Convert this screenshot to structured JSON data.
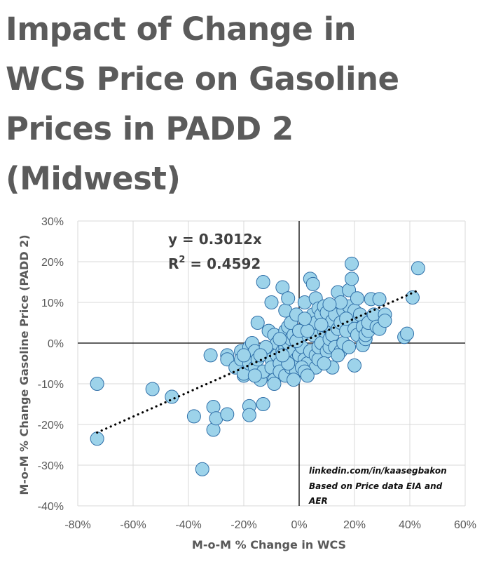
{
  "title_lines": [
    "Impact of Change in",
    "WCS Price on Gasoline",
    "Prices in PADD 2",
    "(Midwest)"
  ],
  "chart_data": {
    "type": "scatter",
    "xlabel": "M-o-M % Change in WCS",
    "ylabel": "M-o-M % Change Gasoline Price (PADD 2)",
    "xlim": [
      -80,
      60
    ],
    "ylim": [
      -40,
      30
    ],
    "x_ticks": [
      "-80%",
      "-60%",
      "-40%",
      "-20%",
      "0%",
      "20%",
      "40%",
      "60%"
    ],
    "y_ticks": [
      "30%",
      "20%",
      "10%",
      "0%",
      "-10%",
      "-20%",
      "-30%",
      "-40%"
    ],
    "grid": true,
    "trendline": {
      "slope": 0.3012,
      "intercept": 0,
      "x_range": [
        -73,
        43
      ],
      "style": "dotted"
    },
    "equation_label": "y = 0.3012x",
    "r2_label": "R",
    "r2_sup": "2",
    "r2_value": " = 0.4592",
    "annotation_lines": [
      "linkedin.com/in/kaasegbakon",
      "Based on Price data EIA and",
      "AER"
    ],
    "marker_color": "#9dd3ea",
    "marker_edge": "#2f6fa8",
    "points": [
      [
        -73,
        -10
      ],
      [
        -73,
        -23.5
      ],
      [
        -53,
        -11.3
      ],
      [
        -46,
        -13.2
      ],
      [
        -38,
        -18
      ],
      [
        -35,
        -31
      ],
      [
        -32,
        -3
      ],
      [
        -31,
        -15.7
      ],
      [
        -31,
        -21.3
      ],
      [
        -30,
        -18.5
      ],
      [
        -26,
        -17.5
      ],
      [
        -26,
        -3
      ],
      [
        -26,
        -4
      ],
      [
        -23,
        -6
      ],
      [
        -21,
        -2
      ],
      [
        -21,
        -4
      ],
      [
        -20,
        -8
      ],
      [
        -20,
        -7.5
      ],
      [
        -19,
        -3
      ],
      [
        -18,
        -15.5
      ],
      [
        -18,
        -17.7
      ],
      [
        -18,
        -1
      ],
      [
        -18,
        -5
      ],
      [
        -17,
        0
      ],
      [
        -16,
        -2
      ],
      [
        -16,
        -6
      ],
      [
        -15,
        -4
      ],
      [
        -15,
        5
      ],
      [
        -14,
        -9
      ],
      [
        -13,
        15
      ],
      [
        -13,
        -15
      ],
      [
        -13,
        -7
      ],
      [
        -12,
        -2
      ],
      [
        -11,
        3
      ],
      [
        -11,
        -2
      ],
      [
        -10,
        10
      ],
      [
        -10,
        -4
      ],
      [
        -10,
        -6
      ],
      [
        -9,
        -9
      ],
      [
        -9,
        -10
      ],
      [
        -9,
        2
      ],
      [
        -8,
        -1
      ],
      [
        -8,
        -3
      ],
      [
        -8,
        0
      ],
      [
        -7,
        -5
      ],
      [
        -7,
        -7
      ],
      [
        -6,
        13.7
      ],
      [
        -6,
        -2
      ],
      [
        -5,
        8
      ],
      [
        -5,
        3
      ],
      [
        -5,
        -8
      ],
      [
        -5,
        -1
      ],
      [
        -4,
        11
      ],
      [
        -4,
        4
      ],
      [
        -4,
        0
      ],
      [
        -3,
        -4
      ],
      [
        -3,
        -6
      ],
      [
        -3,
        1
      ],
      [
        -2,
        -2
      ],
      [
        -2,
        2
      ],
      [
        -1,
        -7
      ],
      [
        -1,
        -4
      ],
      [
        0,
        -3
      ],
      [
        0,
        0
      ],
      [
        0,
        1.5
      ],
      [
        1,
        2
      ],
      [
        1,
        -1
      ],
      [
        2,
        10
      ],
      [
        2,
        -4
      ],
      [
        3,
        -5
      ],
      [
        3,
        4
      ],
      [
        4,
        -2
      ],
      [
        4,
        15.8
      ],
      [
        5,
        14.5
      ],
      [
        5,
        2
      ],
      [
        5,
        7
      ],
      [
        6,
        5
      ],
      [
        6,
        11
      ],
      [
        6,
        -3
      ],
      [
        6,
        -6
      ],
      [
        7,
        -4
      ],
      [
        7,
        8.5
      ],
      [
        7,
        -1
      ],
      [
        8,
        0
      ],
      [
        8,
        7
      ],
      [
        9,
        9
      ],
      [
        9,
        3
      ],
      [
        10,
        4
      ],
      [
        10,
        -2
      ],
      [
        10,
        7.5
      ],
      [
        11,
        -1
      ],
      [
        11,
        1
      ],
      [
        12,
        2
      ],
      [
        12,
        5.5
      ],
      [
        13,
        -1
      ],
      [
        13,
        7
      ],
      [
        14,
        12.5
      ],
      [
        14,
        3.5
      ],
      [
        15,
        5
      ],
      [
        15,
        -2
      ],
      [
        16,
        8
      ],
      [
        16,
        0
      ],
      [
        17,
        3
      ],
      [
        18,
        -1
      ],
      [
        18,
        9
      ],
      [
        18,
        13
      ],
      [
        19,
        15.8
      ],
      [
        19,
        19.5
      ],
      [
        19,
        6
      ],
      [
        20,
        8
      ],
      [
        20,
        -5.5
      ],
      [
        20,
        3.5
      ],
      [
        21,
        2
      ],
      [
        21,
        11
      ],
      [
        22,
        7
      ],
      [
        23,
        4
      ],
      [
        23,
        -0.5
      ],
      [
        24,
        1
      ],
      [
        24,
        2
      ],
      [
        25,
        3
      ],
      [
        25,
        5
      ],
      [
        26,
        10.8
      ],
      [
        27,
        7
      ],
      [
        28,
        4
      ],
      [
        29,
        3.5
      ],
      [
        29,
        10.8
      ],
      [
        31,
        7
      ],
      [
        31,
        5.5
      ],
      [
        38,
        1.5
      ],
      [
        39,
        2.3
      ],
      [
        41,
        11.2
      ],
      [
        43,
        18.4
      ],
      [
        -1,
        0.5
      ],
      [
        1,
        -6
      ],
      [
        2,
        -7
      ],
      [
        3,
        -8
      ],
      [
        -2,
        -9
      ],
      [
        -4,
        -5
      ],
      [
        -6,
        -3
      ],
      [
        -7,
        1
      ],
      [
        -12,
        -1
      ],
      [
        -14,
        -3
      ],
      [
        -16,
        -8
      ],
      [
        -20,
        -3
      ],
      [
        12,
        -6
      ],
      [
        14,
        -3
      ],
      [
        9,
        -5
      ],
      [
        -3,
        5
      ],
      [
        0,
        3
      ],
      [
        -1,
        7
      ],
      [
        3,
        3
      ],
      [
        2,
        6
      ],
      [
        8,
        4.5
      ],
      [
        15,
        10
      ],
      [
        17,
        6
      ],
      [
        11,
        9.5
      ]
    ]
  }
}
